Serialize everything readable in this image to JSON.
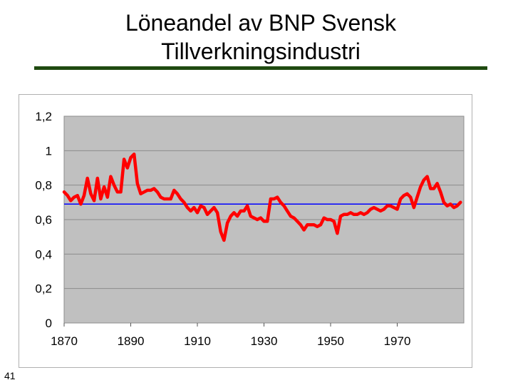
{
  "slide": {
    "title_line1": "Löneandel av BNP Svensk",
    "title_line2": "Tillverkningsindustri",
    "number": "41"
  },
  "colors": {
    "rule": "#1f4a10",
    "plot_background": "#c0c0c0",
    "grid": "#8c8c8c",
    "series": "#ff0000",
    "reference_line": "#0000ff"
  },
  "chart_data": {
    "type": "line",
    "title": "",
    "xlabel": "",
    "ylabel": "",
    "xlim": [
      1870,
      1990
    ],
    "ylim": [
      0,
      1.2
    ],
    "x_ticks": [
      1870,
      1890,
      1910,
      1930,
      1950,
      1970
    ],
    "y_ticks": [
      0,
      0.2,
      0.4,
      0.6,
      0.8,
      1.0,
      1.2
    ],
    "x_tick_labels": [
      "1870",
      "1890",
      "1910",
      "1930",
      "1950",
      "1970"
    ],
    "y_tick_labels": [
      "0",
      "0,2",
      "0,4",
      "0,6",
      "0,8",
      "1",
      "1,2"
    ],
    "grid": true,
    "legend": "none",
    "series": [
      {
        "x": [
          1870,
          1871,
          1872,
          1873,
          1874,
          1875,
          1876,
          1877,
          1878,
          1879,
          1880,
          1881,
          1882,
          1883,
          1884,
          1885,
          1886,
          1887,
          1888,
          1889,
          1890,
          1891,
          1892,
          1893,
          1894,
          1895,
          1896,
          1897,
          1898,
          1899,
          1900,
          1901,
          1902,
          1903,
          1904,
          1905,
          1906,
          1907,
          1908,
          1909,
          1910,
          1911,
          1912,
          1913,
          1914,
          1915,
          1916,
          1917,
          1918,
          1919,
          1920,
          1921,
          1922,
          1923,
          1924,
          1925,
          1926,
          1927,
          1928,
          1929,
          1930,
          1931,
          1932,
          1933,
          1934,
          1935,
          1936,
          1937,
          1938,
          1939,
          1940,
          1941,
          1942,
          1943,
          1944,
          1945,
          1946,
          1947,
          1948,
          1949,
          1950,
          1951,
          1952,
          1953,
          1954,
          1955,
          1956,
          1957,
          1958,
          1959,
          1960,
          1961,
          1962,
          1963,
          1964,
          1965,
          1966,
          1967,
          1968,
          1969,
          1970,
          1971,
          1972,
          1973,
          1974,
          1975,
          1976,
          1977,
          1978,
          1979,
          1980,
          1981,
          1982,
          1983,
          1984,
          1985,
          1986,
          1987,
          1988,
          1989
        ],
        "values": [
          0.76,
          0.74,
          0.71,
          0.73,
          0.74,
          0.69,
          0.74,
          0.84,
          0.75,
          0.71,
          0.84,
          0.72,
          0.79,
          0.73,
          0.85,
          0.8,
          0.76,
          0.76,
          0.95,
          0.9,
          0.96,
          0.98,
          0.81,
          0.75,
          0.76,
          0.77,
          0.77,
          0.78,
          0.76,
          0.73,
          0.72,
          0.72,
          0.72,
          0.77,
          0.75,
          0.72,
          0.7,
          0.67,
          0.65,
          0.67,
          0.64,
          0.68,
          0.67,
          0.63,
          0.65,
          0.67,
          0.64,
          0.53,
          0.48,
          0.58,
          0.62,
          0.64,
          0.62,
          0.65,
          0.65,
          0.68,
          0.62,
          0.61,
          0.6,
          0.61,
          0.59,
          0.59,
          0.72,
          0.72,
          0.73,
          0.7,
          0.68,
          0.65,
          0.62,
          0.61,
          0.59,
          0.57,
          0.54,
          0.57,
          0.57,
          0.57,
          0.56,
          0.57,
          0.61,
          0.6,
          0.6,
          0.59,
          0.52,
          0.62,
          0.63,
          0.63,
          0.64,
          0.63,
          0.63,
          0.64,
          0.63,
          0.64,
          0.66,
          0.67,
          0.66,
          0.65,
          0.66,
          0.68,
          0.68,
          0.67,
          0.66,
          0.72,
          0.74,
          0.75,
          0.73,
          0.67,
          0.73,
          0.79,
          0.83,
          0.85,
          0.78,
          0.78,
          0.81,
          0.76,
          0.7,
          0.68,
          0.69,
          0.67,
          0.68,
          0.7
        ]
      }
    ],
    "reference_line": {
      "y": 0.69
    }
  }
}
